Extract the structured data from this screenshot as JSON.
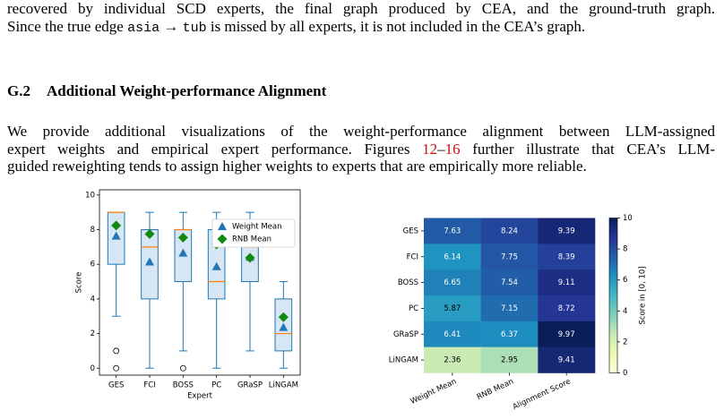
{
  "text": {
    "top_lines": [
      [
        "recovered by individual SCD experts, the final graph produced by CEA, and the ground-truth graph."
      ],
      [
        "Since the true edge ",
        "asia",
        " → ",
        "tub",
        " is missed by all experts, it is not included in the CEA’s graph."
      ]
    ],
    "heading": {
      "number": "G.2",
      "title": "Additional Weight-performance Alignment"
    },
    "paragraph": [
      [
        "We provide additional visualizations of the weight-performance alignment between LLM-assigned"
      ],
      [
        "expert weights and empirical expert performance. Figures ",
        "12",
        "–",
        "16",
        " further illustrate that CEA’s LLM-"
      ],
      [
        "guided reweighting tends to assign higher weights to experts that are empirically more reliable."
      ]
    ]
  },
  "chart_data": [
    {
      "type": "box",
      "categories": [
        "GES",
        "FCI",
        "BOSS",
        "PC",
        "GRaSP",
        "LiNGAM"
      ],
      "xlabel": "Expert",
      "ylabel": "Score",
      "ylim": [
        -0.4,
        10.3
      ],
      "yticks": [
        0,
        2,
        4,
        6,
        8,
        10
      ],
      "box_facecolor": "#d6e6f4",
      "box_edgecolor": "#1f77b4",
      "median_color": "#ff7f0e",
      "boxes": [
        {
          "low": 3,
          "q1": 6,
          "median": 9,
          "q3": 9,
          "high": 9,
          "outliers": [
            1,
            0
          ]
        },
        {
          "low": 0,
          "q1": 4,
          "median": 7,
          "q3": 8,
          "high": 9,
          "outliers": []
        },
        {
          "low": 1,
          "q1": 5,
          "median": 8,
          "q3": 8,
          "high": 9,
          "outliers": [
            0
          ]
        },
        {
          "low": 0,
          "q1": 4,
          "median": 5,
          "q3": 8,
          "high": 9,
          "outliers": []
        },
        {
          "low": 1,
          "q1": 5,
          "median": 7,
          "q3": 8,
          "high": 9,
          "outliers": []
        },
        {
          "low": 0,
          "q1": 1,
          "median": 2,
          "q3": 4,
          "high": 5,
          "outliers": []
        }
      ],
      "series": [
        {
          "name": "Weight Mean",
          "color": "#1f77b4",
          "marker": "triangle",
          "values": [
            7.63,
            6.14,
            6.65,
            5.87,
            6.41,
            2.36
          ]
        },
        {
          "name": "RNB Mean",
          "color": "#108a10",
          "marker": "diamond",
          "values": [
            8.24,
            7.75,
            7.54,
            7.15,
            6.37,
            2.95
          ]
        }
      ],
      "legend": "upper right"
    },
    {
      "type": "heatmap",
      "rows": [
        "GES",
        "FCI",
        "BOSS",
        "PC",
        "GRaSP",
        "LiNGAM"
      ],
      "columns": [
        "Weight Mean",
        "RNB Mean",
        "Alignment Score"
      ],
      "values": [
        [
          7.63,
          8.24,
          9.39
        ],
        [
          6.14,
          7.75,
          8.39
        ],
        [
          6.65,
          7.54,
          9.11
        ],
        [
          5.87,
          7.15,
          8.72
        ],
        [
          6.41,
          6.37,
          9.97
        ],
        [
          2.36,
          2.95,
          9.41
        ]
      ],
      "colormap": "YlGnBu",
      "clim": [
        0,
        10
      ],
      "colorbar_ticks": [
        0,
        2,
        4,
        6,
        8,
        10
      ],
      "colorbar_label": "Score in [0, 10]"
    }
  ]
}
